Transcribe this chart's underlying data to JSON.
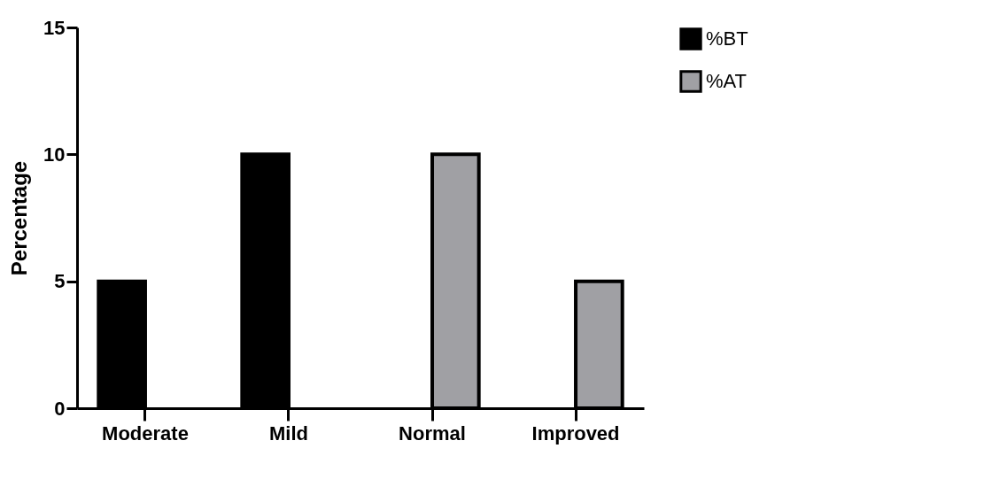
{
  "chart_data": {
    "type": "bar",
    "ylabel": "Percentage",
    "categories": [
      "Moderate",
      "Mild",
      "Normal",
      "Improved"
    ],
    "series": [
      {
        "name": "%BT",
        "color": "#000000",
        "values": [
          5,
          10,
          0,
          0
        ]
      },
      {
        "name": "%AT",
        "color": "#a0a0a4",
        "values": [
          0,
          0,
          10,
          5
        ]
      }
    ],
    "ylim": [
      0,
      15
    ],
    "yticks": [
      0,
      5,
      10,
      15
    ],
    "grid": false,
    "legend": "top right"
  }
}
